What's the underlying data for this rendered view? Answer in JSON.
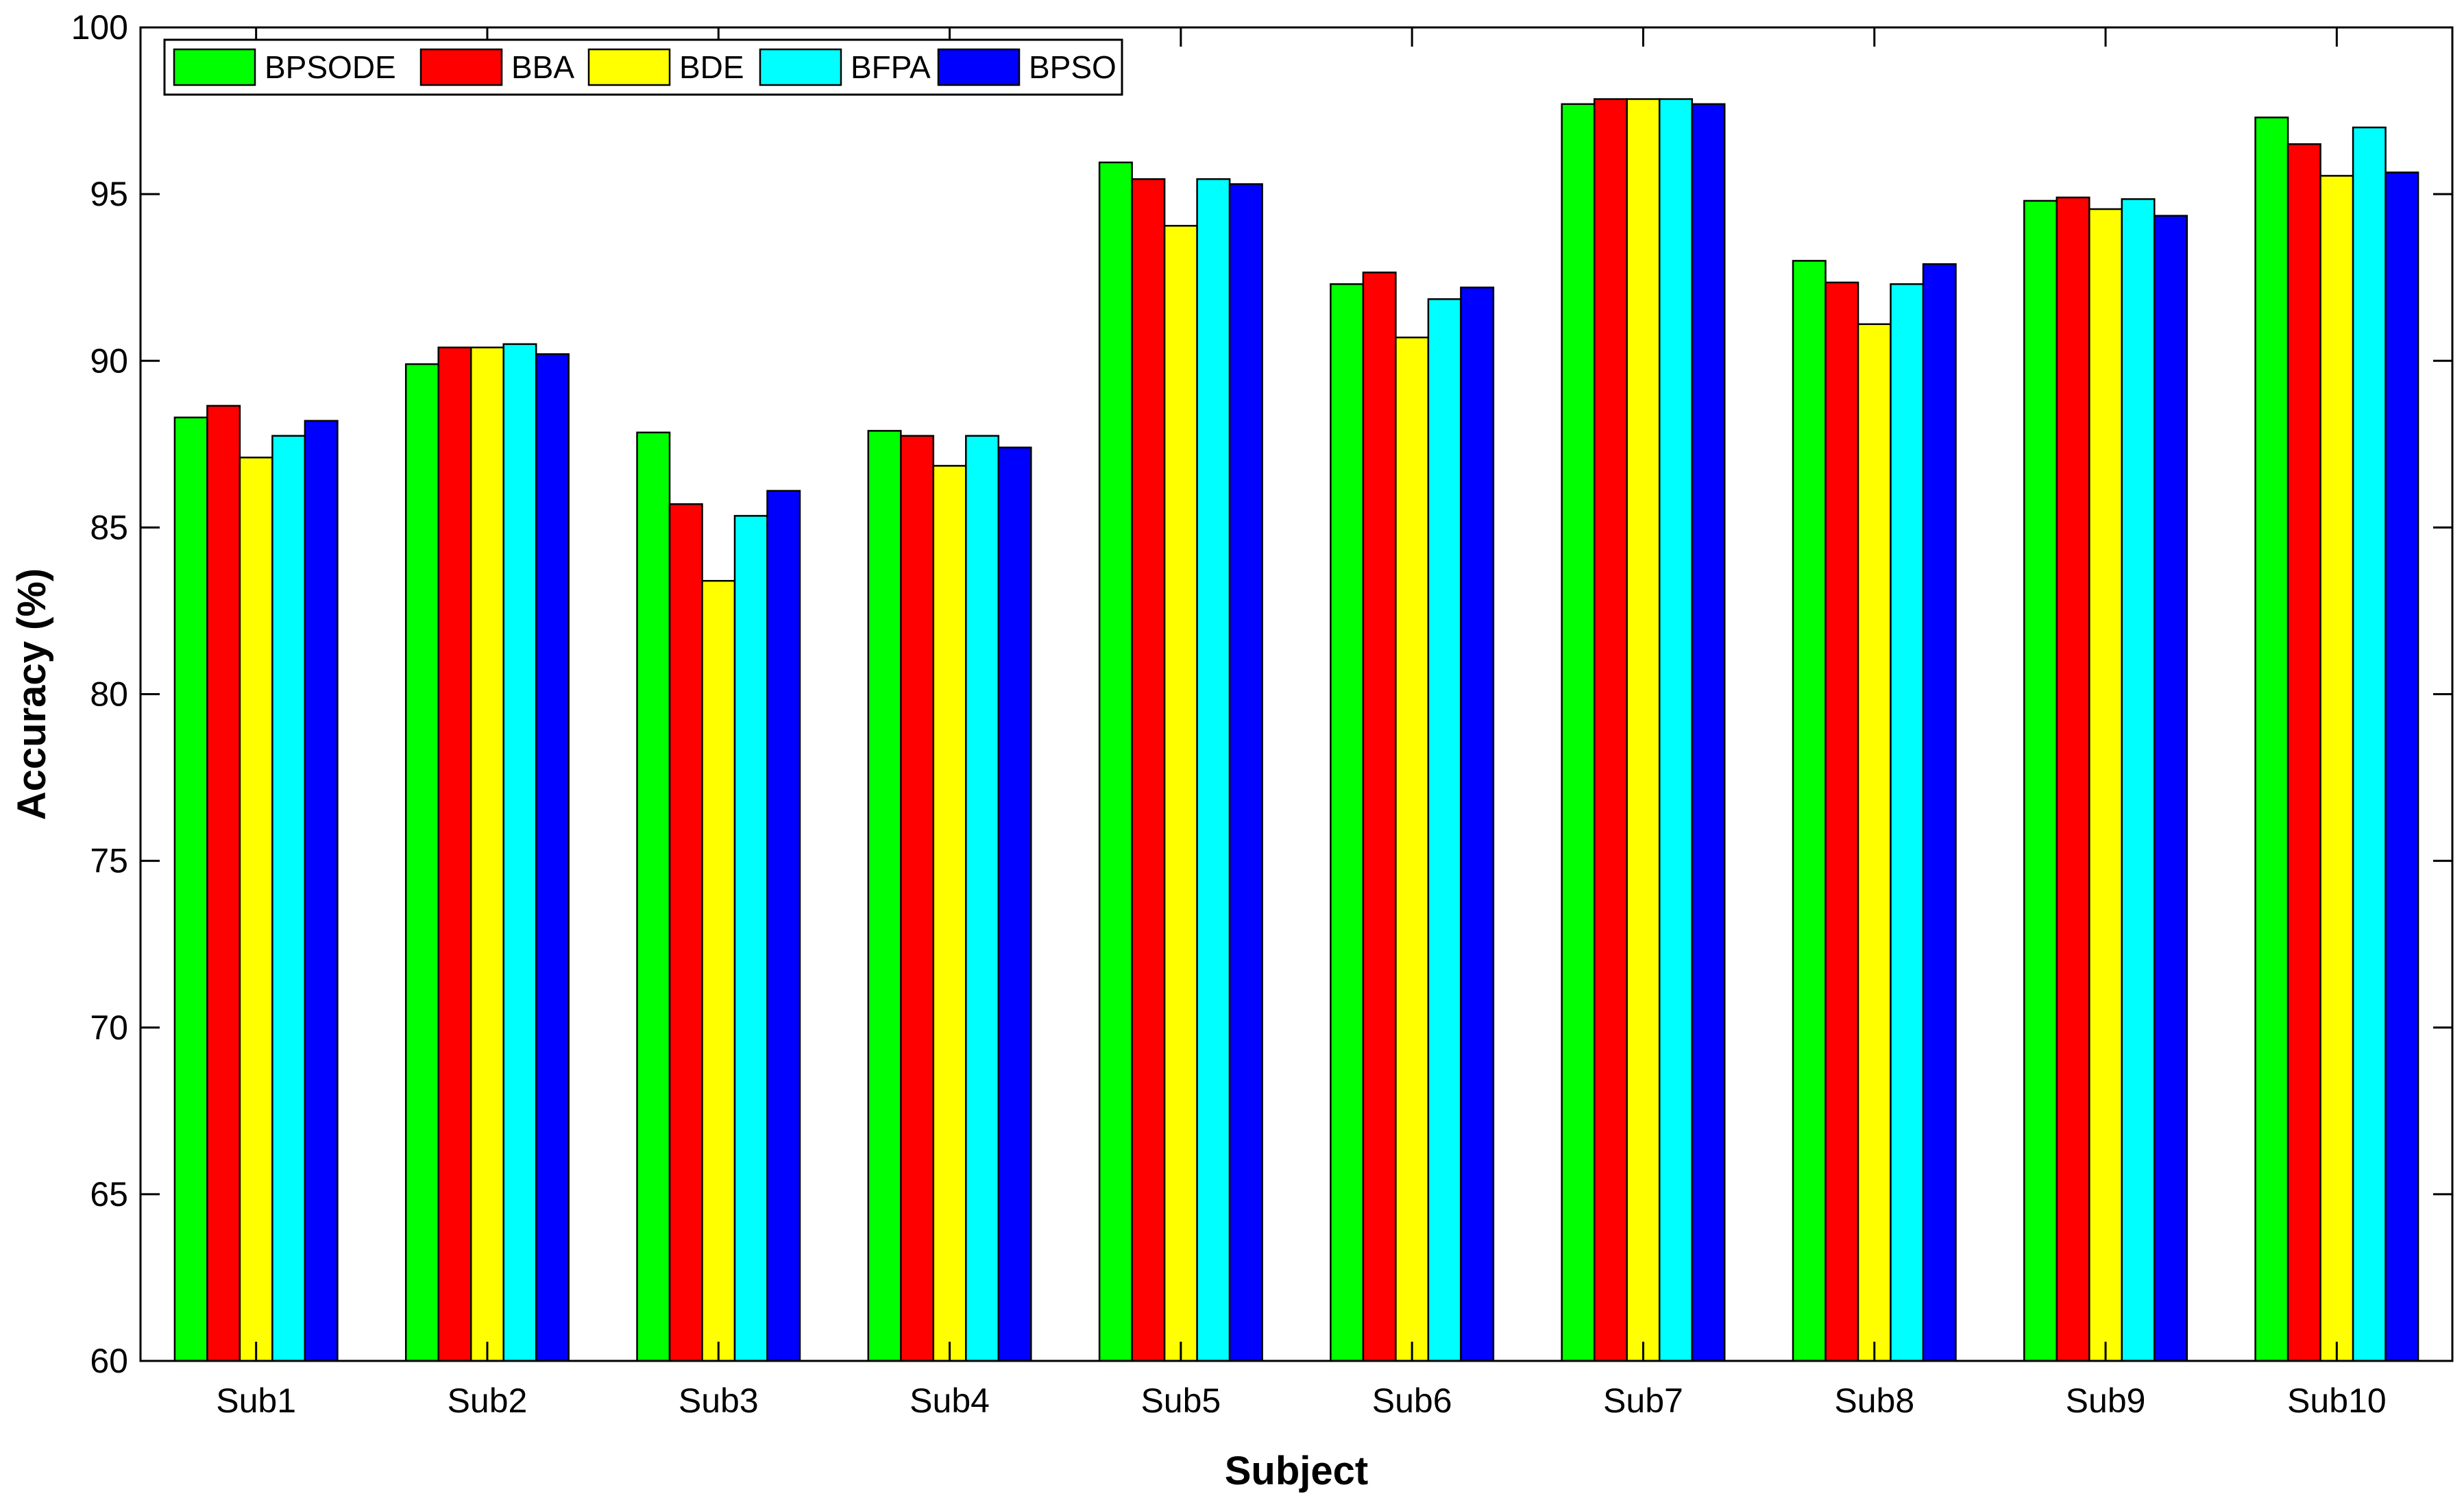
{
  "chart_data": {
    "type": "bar",
    "title": "",
    "xlabel": "Subject",
    "ylabel": "Accuracy (%)",
    "ylim": [
      60,
      100
    ],
    "yticks": [
      "60",
      "65",
      "70",
      "75",
      "80",
      "85",
      "90",
      "95",
      "100"
    ],
    "grid": false,
    "legend_position": "top-left",
    "categories": [
      "Sub1",
      "Sub2",
      "Sub3",
      "Sub4",
      "Sub5",
      "Sub6",
      "Sub7",
      "Sub8",
      "Sub9",
      "Sub10"
    ],
    "series": [
      {
        "name": "BPSODE",
        "color": "#00ff00",
        "values": [
          88.3,
          89.9,
          87.85,
          87.9,
          95.95,
          92.3,
          97.7,
          93.0,
          94.8,
          97.3
        ]
      },
      {
        "name": "BBA",
        "color": "#ff0000",
        "values": [
          88.65,
          90.4,
          85.7,
          87.75,
          95.45,
          92.65,
          97.85,
          92.35,
          94.9,
          96.5
        ]
      },
      {
        "name": "BDE",
        "color": "#ffff00",
        "values": [
          87.1,
          90.4,
          83.4,
          86.85,
          94.05,
          90.7,
          97.85,
          91.1,
          94.55,
          95.55
        ]
      },
      {
        "name": "BFPA",
        "color": "#00ffff",
        "values": [
          87.75,
          90.5,
          85.35,
          87.75,
          95.45,
          91.85,
          97.85,
          92.3,
          94.85,
          97.0
        ]
      },
      {
        "name": "BPSO",
        "color": "#0000ff",
        "values": [
          88.2,
          90.2,
          86.1,
          87.4,
          95.3,
          92.2,
          97.7,
          92.9,
          94.35,
          95.65
        ]
      }
    ]
  }
}
